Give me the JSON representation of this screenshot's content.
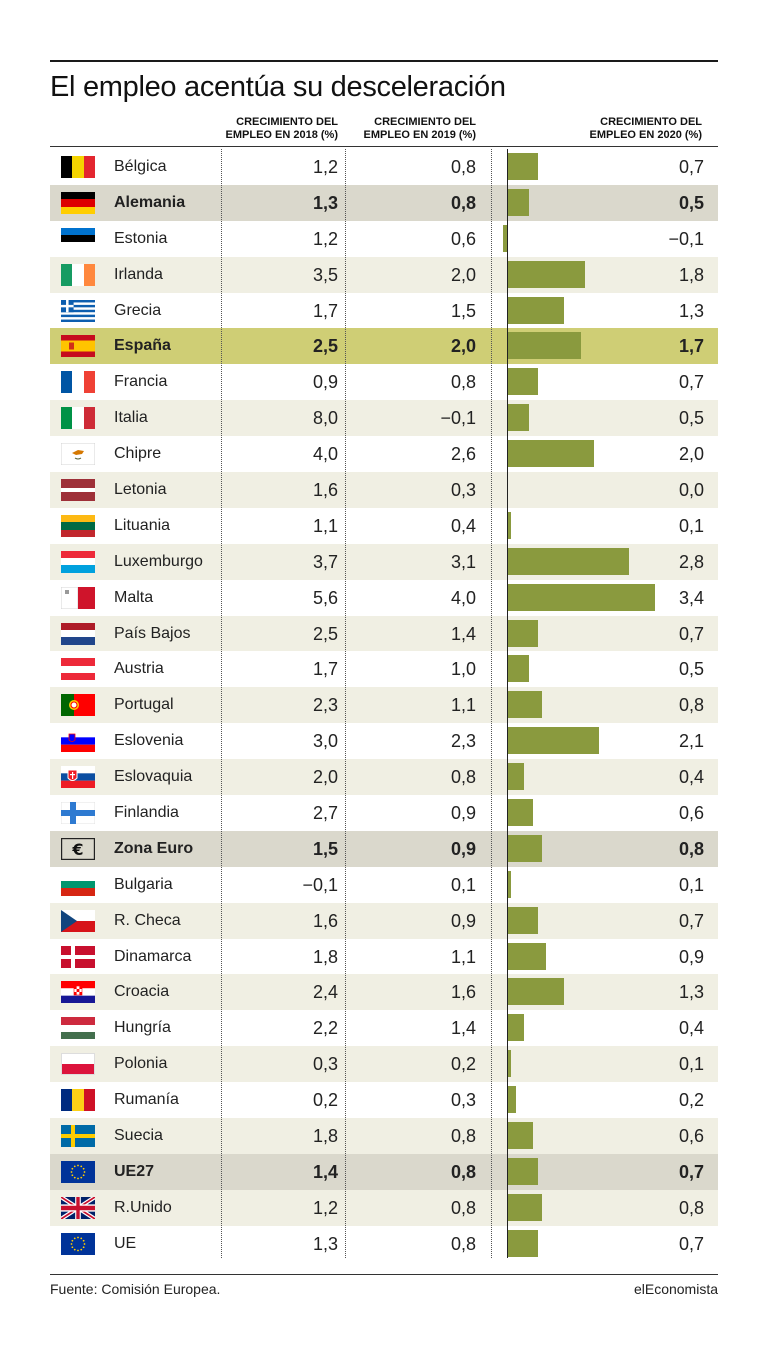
{
  "title": "El empleo acentúa su desceleración",
  "columns": {
    "c2018": "CRECIMIENTO DEL\nEMPLEO EN 2018 (%)",
    "c2019": "CRECIMIENTO DEL\nEMPLEO EN 2019 (%)",
    "c2020": "CRECIMIENTO DEL\nEMPLEO EN 2020 (%)"
  },
  "footer": {
    "source": "Fuente: Comisión Europea.",
    "brand": "elEconomista"
  },
  "colors": {
    "bar": "#8a9a3e",
    "spain_highlight": "#cfce75",
    "aggregate_row": "#dad8cc",
    "alt_row": "#f0efe3"
  },
  "chart_data": {
    "type": "table",
    "title": "El empleo acentúa su desceleración",
    "columns": [
      "",
      "CRECIMIENTO DEL EMPLEO EN 2018 (%)",
      "CRECIMIENTO DEL EMPLEO EN 2019 (%)",
      "CRECIMIENTO DEL EMPLEO EN 2020 (%)"
    ],
    "bar_column": "CRECIMIENTO DEL EMPLEO EN 2020 (%)",
    "bar_range": [
      0,
      3.4
    ],
    "rows": [
      {
        "country": "Bélgica",
        "flag": "flag-belgium",
        "style": "",
        "y2018": "1,2",
        "y2019": "0,8",
        "y2020": "0,7",
        "v2020": 0.7
      },
      {
        "country": "Alemania",
        "flag": "flag-germany",
        "style": "aggregate",
        "y2018": "1,3",
        "y2019": "0,8",
        "y2020": "0,5",
        "v2020": 0.5
      },
      {
        "country": "Estonia",
        "flag": "flag-estonia",
        "style": "",
        "y2018": "1,2",
        "y2019": "0,6",
        "y2020": "−0,1",
        "v2020": -0.1
      },
      {
        "country": "Irlanda",
        "flag": "flag-ireland",
        "style": "",
        "y2018": "3,5",
        "y2019": "2,0",
        "y2020": "1,8",
        "v2020": 1.8
      },
      {
        "country": "Grecia",
        "flag": "flag-greece",
        "style": "",
        "y2018": "1,7",
        "y2019": "1,5",
        "y2020": "1,3",
        "v2020": 1.3
      },
      {
        "country": "España",
        "flag": "flag-spain",
        "style": "highlight",
        "y2018": "2,5",
        "y2019": "2,0",
        "y2020": "1,7",
        "v2020": 1.7
      },
      {
        "country": "Francia",
        "flag": "flag-france",
        "style": "",
        "y2018": "0,9",
        "y2019": "0,8",
        "y2020": "0,7",
        "v2020": 0.7
      },
      {
        "country": "Italia",
        "flag": "flag-italy",
        "style": "",
        "y2018": "8,0",
        "y2019": "−0,1",
        "y2020": "0,5",
        "v2020": 0.5
      },
      {
        "country": "Chipre",
        "flag": "flag-cyprus",
        "style": "",
        "y2018": "4,0",
        "y2019": "2,6",
        "y2020": "2,0",
        "v2020": 2.0
      },
      {
        "country": "Letonia",
        "flag": "flag-latvia",
        "style": "",
        "y2018": "1,6",
        "y2019": "0,3",
        "y2020": "0,0",
        "v2020": 0.0
      },
      {
        "country": "Lituania",
        "flag": "flag-lithuania",
        "style": "",
        "y2018": "1,1",
        "y2019": "0,4",
        "y2020": "0,1",
        "v2020": 0.1
      },
      {
        "country": "Luxemburgo",
        "flag": "flag-luxembourg",
        "style": "",
        "y2018": "3,7",
        "y2019": "3,1",
        "y2020": "2,8",
        "v2020": 2.8
      },
      {
        "country": "Malta",
        "flag": "flag-malta",
        "style": "",
        "y2018": "5,6",
        "y2019": "4,0",
        "y2020": "3,4",
        "v2020": 3.4
      },
      {
        "country": "País Bajos",
        "flag": "flag-netherlands",
        "style": "",
        "y2018": "2,5",
        "y2019": "1,4",
        "y2020": "0,7",
        "v2020": 0.7
      },
      {
        "country": "Austria",
        "flag": "flag-austria",
        "style": "",
        "y2018": "1,7",
        "y2019": "1,0",
        "y2020": "0,5",
        "v2020": 0.5
      },
      {
        "country": "Portugal",
        "flag": "flag-portugal",
        "style": "",
        "y2018": "2,3",
        "y2019": "1,1",
        "y2020": "0,8",
        "v2020": 0.8
      },
      {
        "country": "Eslovenia",
        "flag": "flag-slovenia",
        "style": "",
        "y2018": "3,0",
        "y2019": "2,3",
        "y2020": "2,1",
        "v2020": 2.1
      },
      {
        "country": "Eslovaquia",
        "flag": "flag-slovakia",
        "style": "",
        "y2018": "2,0",
        "y2019": "0,8",
        "y2020": "0,4",
        "v2020": 0.4
      },
      {
        "country": "Finlandia",
        "flag": "flag-finland",
        "style": "",
        "y2018": "2,7",
        "y2019": "0,9",
        "y2020": "0,6",
        "v2020": 0.6
      },
      {
        "country": "Zona Euro",
        "flag": "euro-symbol",
        "style": "aggregate",
        "y2018": "1,5",
        "y2019": "0,9",
        "y2020": "0,8",
        "v2020": 0.8
      },
      {
        "country": "Bulgaria",
        "flag": "flag-bulgaria",
        "style": "",
        "y2018": "−0,1",
        "y2019": "0,1",
        "y2020": "0,1",
        "v2020": 0.1
      },
      {
        "country": "R. Checa",
        "flag": "flag-czechia",
        "style": "",
        "y2018": "1,6",
        "y2019": "0,9",
        "y2020": "0,7",
        "v2020": 0.7
      },
      {
        "country": "Dinamarca",
        "flag": "flag-denmark",
        "style": "",
        "y2018": "1,8",
        "y2019": "1,1",
        "y2020": "0,9",
        "v2020": 0.9
      },
      {
        "country": "Croacia",
        "flag": "flag-croatia",
        "style": "",
        "y2018": "2,4",
        "y2019": "1,6",
        "y2020": "1,3",
        "v2020": 1.3
      },
      {
        "country": "Hungría",
        "flag": "flag-hungary",
        "style": "",
        "y2018": "2,2",
        "y2019": "1,4",
        "y2020": "0,4",
        "v2020": 0.4
      },
      {
        "country": "Polonia",
        "flag": "flag-poland",
        "style": "",
        "y2018": "0,3",
        "y2019": "0,2",
        "y2020": "0,1",
        "v2020": 0.1
      },
      {
        "country": "Rumanía",
        "flag": "flag-romania",
        "style": "",
        "y2018": "0,2",
        "y2019": "0,3",
        "y2020": "0,2",
        "v2020": 0.2
      },
      {
        "country": "Suecia",
        "flag": "flag-sweden",
        "style": "",
        "y2018": "1,8",
        "y2019": "0,8",
        "y2020": "0,6",
        "v2020": 0.6
      },
      {
        "country": "UE27",
        "flag": "flag-eu",
        "style": "aggregate",
        "y2018": "1,4",
        "y2019": "0,8",
        "y2020": "0,7",
        "v2020": 0.7
      },
      {
        "country": "R.Unido",
        "flag": "flag-uk",
        "style": "",
        "y2018": "1,2",
        "y2019": "0,8",
        "y2020": "0,8",
        "v2020": 0.8
      },
      {
        "country": "UE",
        "flag": "flag-eu",
        "style": "",
        "y2018": "1,3",
        "y2019": "0,8",
        "y2020": "0,7",
        "v2020": 0.7
      }
    ]
  }
}
